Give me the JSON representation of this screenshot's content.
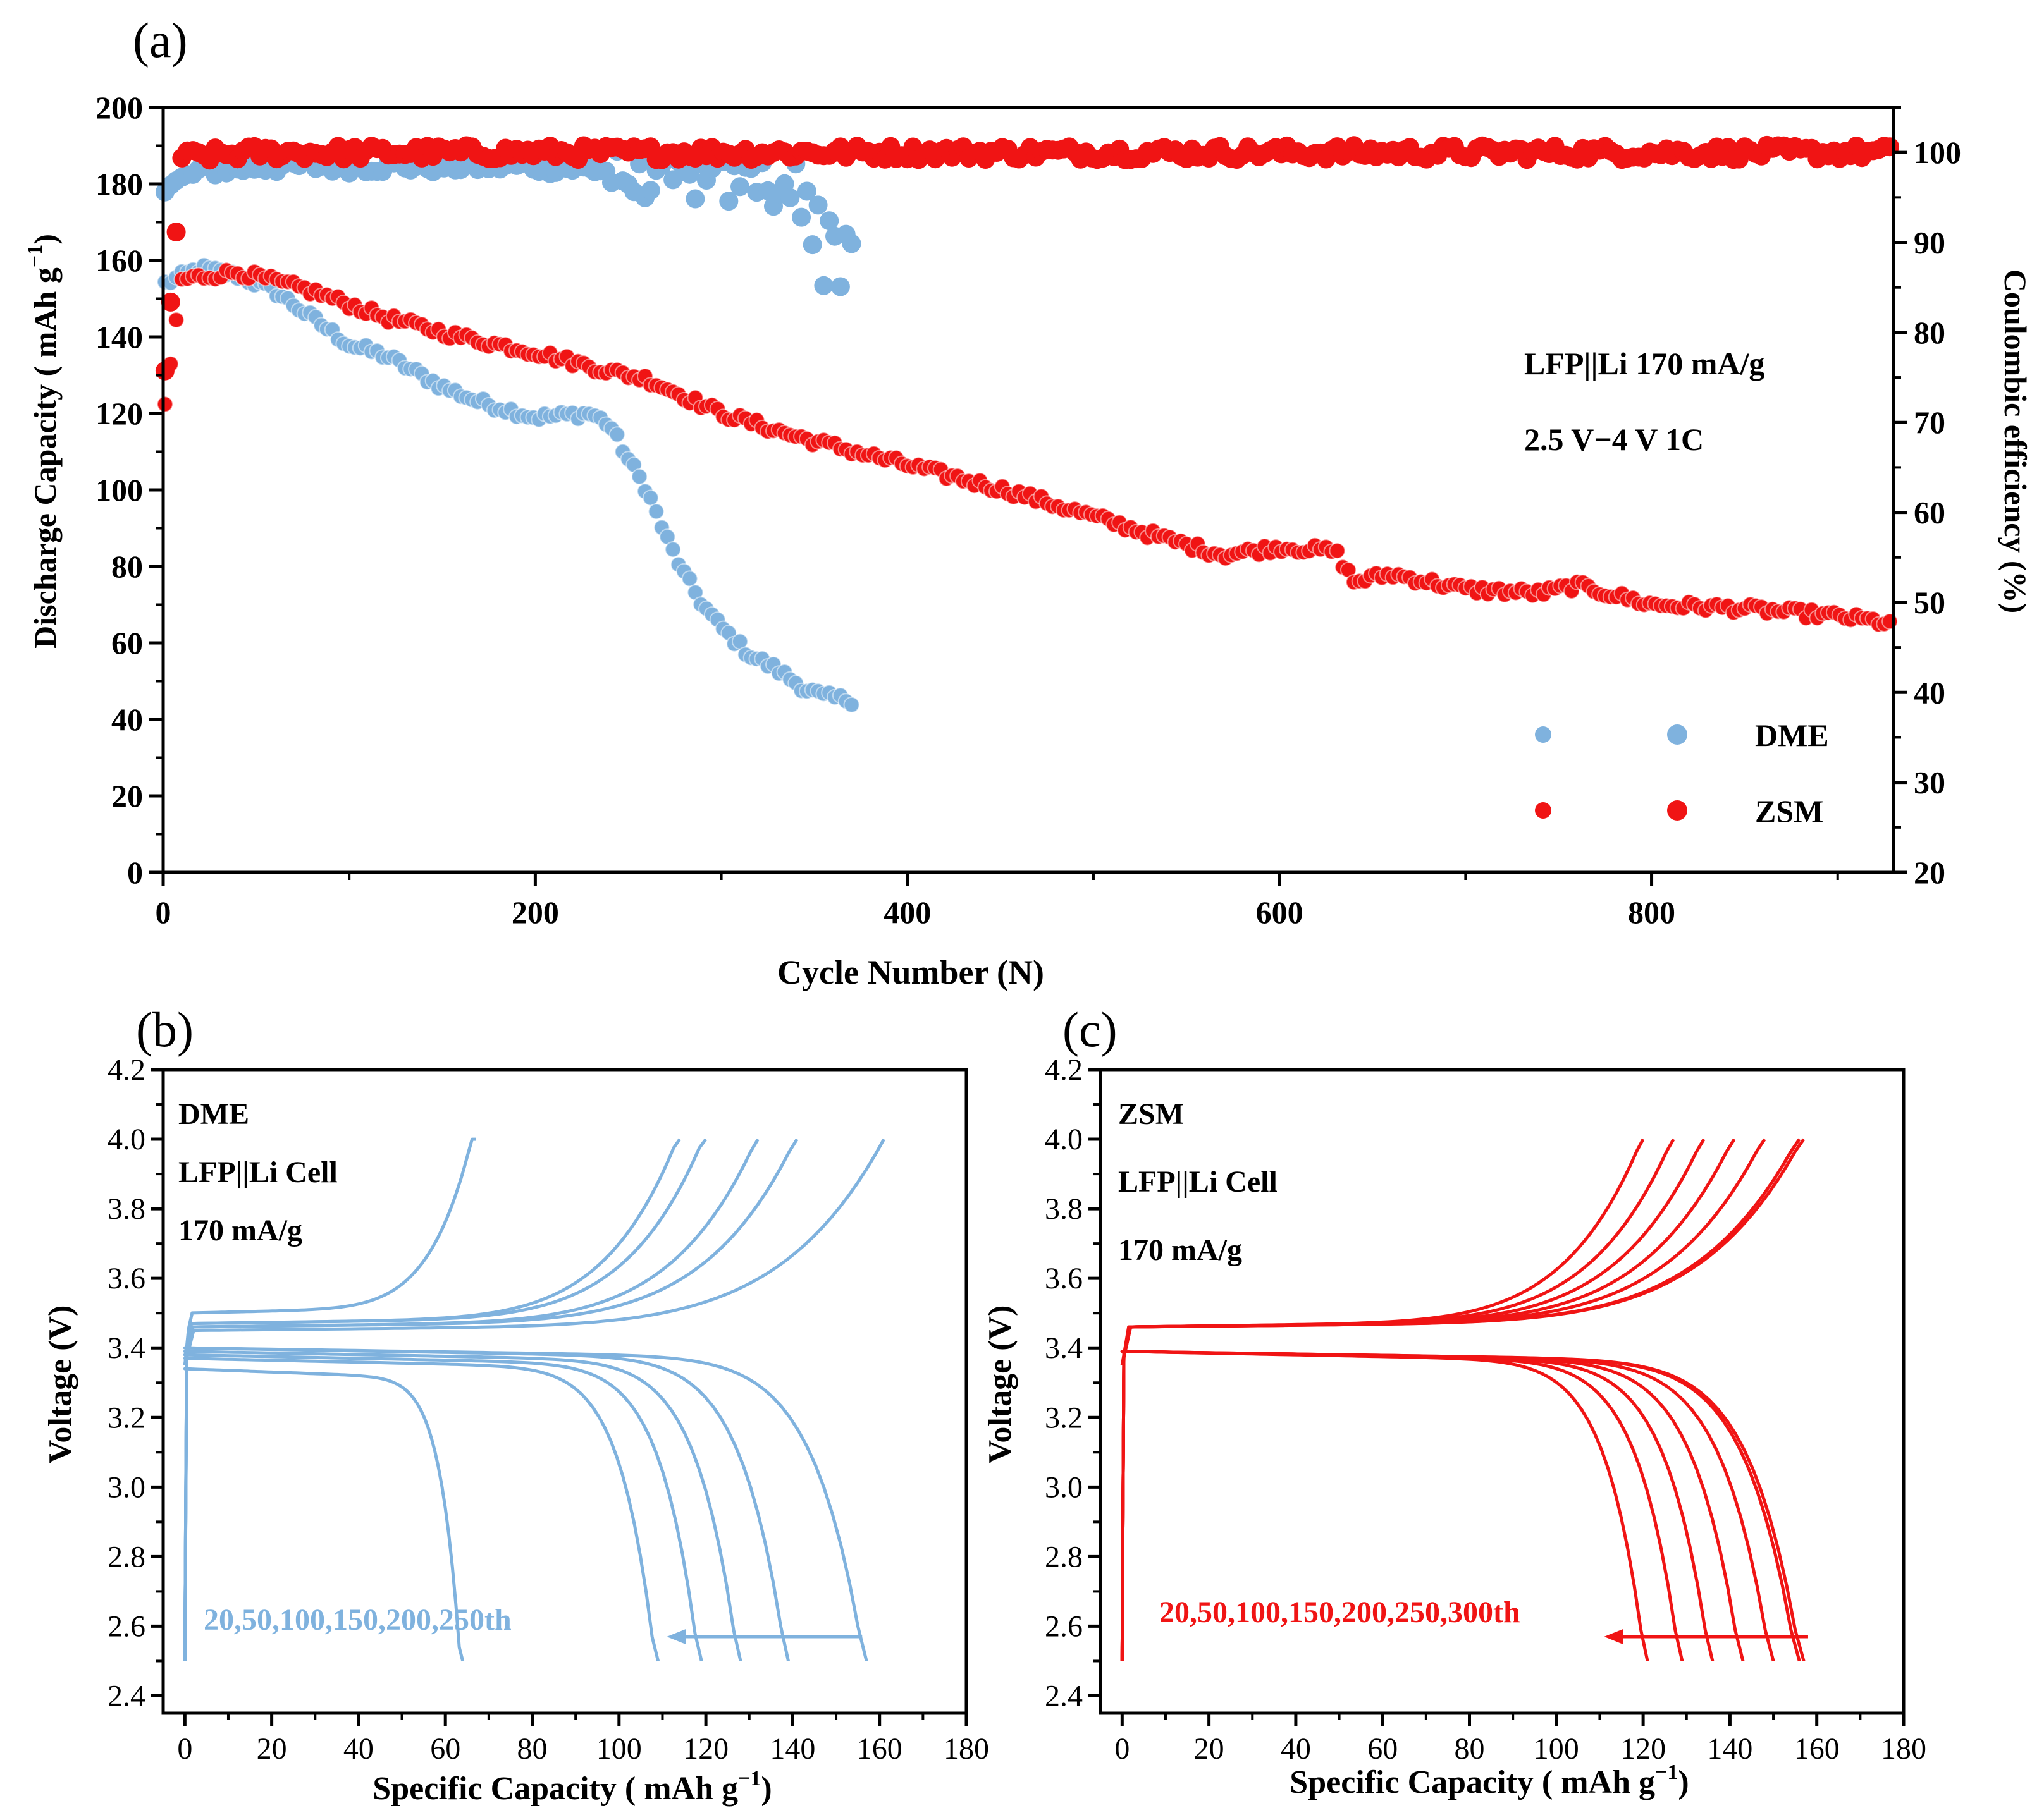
{
  "colors": {
    "dme": "#7FB2DE",
    "zsm": "#F01414",
    "axis": "#000000"
  },
  "chart_data": [
    {
      "panel": "(a)",
      "type": "scatter",
      "xlabel": "Cycle Number (N)",
      "ylabel_left_main": "Discharge Capacity ( mAh g",
      "ylabel_left_sup": "−1",
      "ylabel_left_tail": ")",
      "ylabel_right": "Coulombic efficiency (%)",
      "xlim": [
        0,
        930
      ],
      "ylim_left": [
        0,
        200
      ],
      "ylim_right": [
        20,
        105
      ],
      "xticks": [
        "0",
        "200",
        "400",
        "600",
        "800"
      ],
      "xtick_values": [
        0,
        200,
        400,
        600,
        800
      ],
      "yticks_left": [
        "0",
        "20",
        "40",
        "60",
        "80",
        "100",
        "120",
        "140",
        "160",
        "180",
        "200"
      ],
      "ytick_left_values": [
        0,
        20,
        40,
        60,
        80,
        100,
        120,
        140,
        160,
        180,
        200
      ],
      "yticks_right": [
        "20",
        "30",
        "40",
        "50",
        "60",
        "70",
        "80",
        "90",
        "100"
      ],
      "ytick_right_values": [
        20,
        30,
        40,
        50,
        60,
        70,
        80,
        90,
        100
      ],
      "annotations": [
        "LFP||Li 170 mA/g",
        "2.5 V−4 V 1C"
      ],
      "legend": [
        "DME",
        "ZSM"
      ],
      "legend_position": "bottom-right",
      "series": [
        {
          "name": "DME capacity",
          "color_key": "dme",
          "axis": "left",
          "x": [
            1,
            20,
            40,
            60,
            80,
            100,
            120,
            150,
            170,
            200,
            230,
            240,
            250,
            260,
            270,
            280,
            290,
            300,
            315,
            330,
            345,
            355,
            370
          ],
          "y": [
            154,
            158,
            156,
            152,
            145,
            138,
            135,
            127,
            123,
            119,
            120,
            117,
            108,
            100,
            88,
            78,
            70,
            64,
            57,
            53,
            48,
            46,
            45
          ]
        },
        {
          "name": "DME CE",
          "color_key": "dme",
          "axis": "right",
          "x": [
            1,
            20,
            60,
            120,
            200,
            240,
            260,
            300,
            340,
            350,
            360,
            370
          ],
          "y": [
            96,
            98,
            98.5,
            98.5,
            98.5,
            98,
            97,
            97.5,
            97,
            94,
            88,
            85
          ]
        },
        {
          "name": "ZSM capacity",
          "color_key": "zsm",
          "axis": "left",
          "x": [
            1,
            10,
            40,
            80,
            120,
            160,
            200,
            240,
            260,
            300,
            340,
            380,
            420,
            460,
            500,
            540,
            570,
            600,
            630,
            640,
            660,
            700,
            740,
            760,
            800,
            850,
            900,
            930
          ],
          "y": [
            122,
            155,
            157,
            152,
            145,
            140,
            136,
            131,
            129,
            120,
            114,
            109,
            104,
            99,
            93,
            87,
            83,
            85,
            84,
            76,
            78,
            74,
            73,
            75,
            70,
            69,
            67,
            65
          ]
        },
        {
          "name": "ZSM CE",
          "color_key": "zsm",
          "axis": "right",
          "x": [
            1,
            10,
            50,
            100,
            200,
            300,
            400,
            500,
            600,
            700,
            800,
            930
          ],
          "y": [
            75,
            99.5,
            100,
            100,
            100,
            100,
            100,
            100,
            100,
            100,
            100,
            100
          ]
        }
      ]
    },
    {
      "panel": "(b)",
      "type": "line",
      "xlabel_main": "Specific Capacity ( mAh g",
      "xlabel_sup": "−1",
      "xlabel_tail": ")",
      "ylabel": "Voltage (V)",
      "xlim": [
        -5,
        180
      ],
      "ylim": [
        2.35,
        4.2
      ],
      "xticks": [
        "0",
        "20",
        "40",
        "60",
        "80",
        "100",
        "120",
        "140",
        "160",
        "180"
      ],
      "xtick_values": [
        0,
        20,
        40,
        60,
        80,
        100,
        120,
        140,
        160,
        180
      ],
      "yticks": [
        "2.4",
        "2.6",
        "2.8",
        "3.0",
        "3.2",
        "3.4",
        "3.6",
        "3.8",
        "4.0",
        "4.2"
      ],
      "ytick_values": [
        2.4,
        2.6,
        2.8,
        3.0,
        3.2,
        3.4,
        3.6,
        3.8,
        4.0,
        4.2
      ],
      "labels": [
        "DME",
        "LFP||Li Cell",
        "170 mA/g"
      ],
      "cycle_label": "20,50,100,150,200,250th",
      "series": [
        {
          "name": "20th",
          "charge_end": 161,
          "discharge_end": 157,
          "charge_plateau": 3.45,
          "discharge_plateau": 3.4
        },
        {
          "name": "50th",
          "charge_end": 141,
          "discharge_end": 139,
          "charge_plateau": 3.46,
          "discharge_plateau": 3.4
        },
        {
          "name": "100th",
          "charge_end": 132,
          "discharge_end": 128,
          "charge_plateau": 3.46,
          "discharge_plateau": 3.39
        },
        {
          "name": "150th",
          "charge_end": 120,
          "discharge_end": 119,
          "charge_plateau": 3.47,
          "discharge_plateau": 3.38
        },
        {
          "name": "200th",
          "charge_end": 114,
          "discharge_end": 109,
          "charge_plateau": 3.47,
          "discharge_plateau": 3.37
        },
        {
          "name": "250th",
          "charge_end": 67,
          "discharge_end": 64,
          "charge_plateau": 3.5,
          "discharge_plateau": 3.34
        }
      ]
    },
    {
      "panel": "(c)",
      "type": "line",
      "xlabel_main": "Specific Capacity  ( mAh g",
      "xlabel_sup": "−1",
      "xlabel_tail": ")",
      "ylabel": "Voltage (V)",
      "xlim": [
        -5,
        180
      ],
      "ylim": [
        2.35,
        4.2
      ],
      "xticks": [
        "0",
        "20",
        "40",
        "60",
        "80",
        "100",
        "120",
        "140",
        "160",
        "180"
      ],
      "xtick_values": [
        0,
        20,
        40,
        60,
        80,
        100,
        120,
        140,
        160,
        180
      ],
      "yticks": [
        "2.4",
        "2.6",
        "2.8",
        "3.0",
        "3.2",
        "3.4",
        "3.6",
        "3.8",
        "4.0",
        "4.2"
      ],
      "ytick_values": [
        2.4,
        2.6,
        2.8,
        3.0,
        3.2,
        3.4,
        3.6,
        3.8,
        4.0,
        4.2
      ],
      "labels": [
        "ZSM",
        "LFP||Li Cell",
        "170 mA/g"
      ],
      "cycle_label": "20,50,100,150,200,250,300th",
      "series": [
        {
          "name": "20th",
          "charge_end": 157,
          "discharge_end": 157,
          "charge_plateau": 3.46,
          "discharge_plateau": 3.39
        },
        {
          "name": "50th",
          "charge_end": 156,
          "discharge_end": 156,
          "charge_plateau": 3.46,
          "discharge_plateau": 3.39
        },
        {
          "name": "100th",
          "charge_end": 148,
          "discharge_end": 150,
          "charge_plateau": 3.46,
          "discharge_plateau": 3.39
        },
        {
          "name": "150th",
          "charge_end": 141,
          "discharge_end": 143,
          "charge_plateau": 3.46,
          "discharge_plateau": 3.39
        },
        {
          "name": "200th",
          "charge_end": 134,
          "discharge_end": 136,
          "charge_plateau": 3.46,
          "discharge_plateau": 3.39
        },
        {
          "name": "250th",
          "charge_end": 127,
          "discharge_end": 129,
          "charge_plateau": 3.46,
          "discharge_plateau": 3.39
        },
        {
          "name": "300th",
          "charge_end": 120,
          "discharge_end": 121,
          "charge_plateau": 3.46,
          "discharge_plateau": 3.39
        }
      ]
    }
  ]
}
